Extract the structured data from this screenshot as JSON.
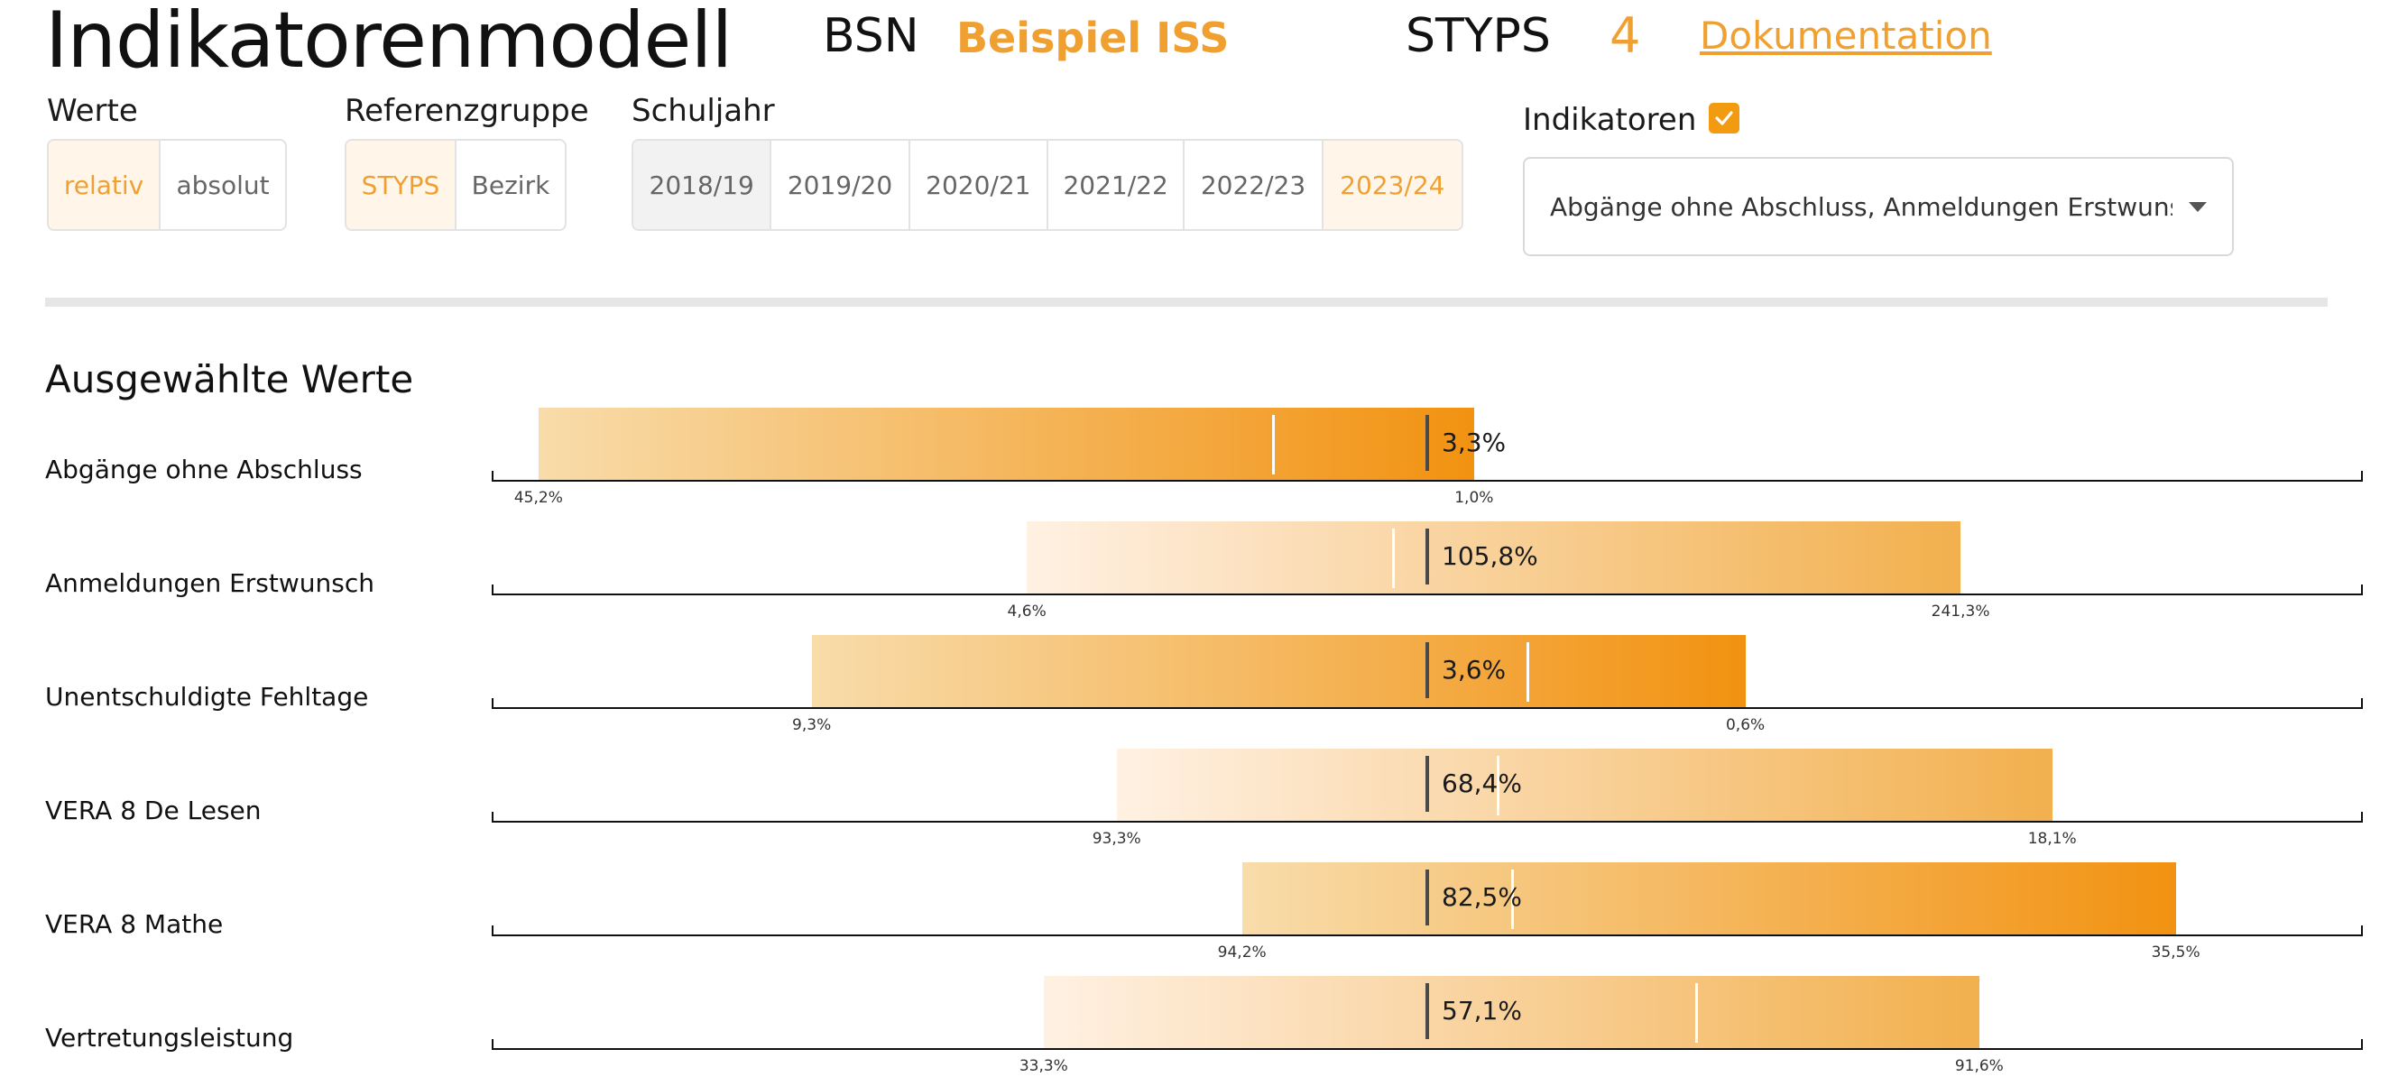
{
  "header": {
    "title": "Indikatorenmodell",
    "bsn_label": "BSN",
    "bsn_value": "Beispiel ISS",
    "styps_label": "STYPS",
    "styps_value": "4",
    "doc_link": "Dokumentation"
  },
  "filters": {
    "werte": {
      "label": "Werte",
      "options": [
        "relativ",
        "absolut"
      ],
      "selected": "relativ"
    },
    "referenzgruppe": {
      "label": "Referenzgruppe",
      "options": [
        "STYPS",
        "Bezirk"
      ],
      "selected": "STYPS"
    },
    "schuljahr": {
      "label": "Schuljahr",
      "options": [
        "2018/19",
        "2019/20",
        "2020/21",
        "2021/22",
        "2022/23",
        "2023/24"
      ],
      "selected": "2023/24"
    },
    "indikatoren": {
      "label": "Indikatoren",
      "checked": true,
      "dropdown_value": "Abgänge ohne Abschluss, Anmeldungen Erstwunsch,..."
    }
  },
  "section": {
    "title": "Ausgewählte Werte"
  },
  "colors": {
    "accent": "#f0a030",
    "bar_dark": "#f29b11",
    "bar_light": "#fff0e0"
  },
  "chart_data": {
    "type": "bar",
    "rows": [
      {
        "label": "Abgänge ohne Abschluss",
        "value_label": "3,3%",
        "min_label": "45,2%",
        "max_label": "1,0%",
        "min_pos": 0.025,
        "max_pos": 0.525,
        "marker_pos": 0.5,
        "ref_pos": 0.417,
        "from_light": "#f8dcaa",
        "to_dark": "#f29211"
      },
      {
        "label": "Anmeldungen Erstwunsch",
        "value_label": "105,8%",
        "min_label": "4,6%",
        "max_label": "241,3%",
        "min_pos": 0.286,
        "max_pos": 0.785,
        "marker_pos": 0.5,
        "ref_pos": 0.481,
        "from_light": "#fff1e3",
        "to_dark": "#f2b04e"
      },
      {
        "label": "Unentschuldigte Fehltage",
        "value_label": "3,6%",
        "min_label": "9,3%",
        "max_label": "0,6%",
        "min_pos": 0.171,
        "max_pos": 0.67,
        "marker_pos": 0.5,
        "ref_pos": 0.553,
        "from_light": "#f8dcaa",
        "to_dark": "#f29211"
      },
      {
        "label": "VERA 8 De Lesen",
        "value_label": "68,4%",
        "min_label": "93,3%",
        "max_label": "18,1%",
        "min_pos": 0.334,
        "max_pos": 0.834,
        "marker_pos": 0.5,
        "ref_pos": 0.537,
        "from_light": "#fff1e3",
        "to_dark": "#f2b04e"
      },
      {
        "label": "VERA 8 Mathe",
        "value_label": "82,5%",
        "min_label": "94,2%",
        "max_label": "35,5%",
        "min_pos": 0.401,
        "max_pos": 0.9,
        "marker_pos": 0.5,
        "ref_pos": 0.545,
        "from_light": "#f8dcaa",
        "to_dark": "#f29211"
      },
      {
        "label": "Vertretungsleistung",
        "value_label": "57,1%",
        "min_label": "33,3%",
        "max_label": "91,6%",
        "min_pos": 0.295,
        "max_pos": 0.795,
        "marker_pos": 0.5,
        "ref_pos": 0.643,
        "from_light": "#fff1e3",
        "to_dark": "#f2b04e"
      }
    ]
  }
}
